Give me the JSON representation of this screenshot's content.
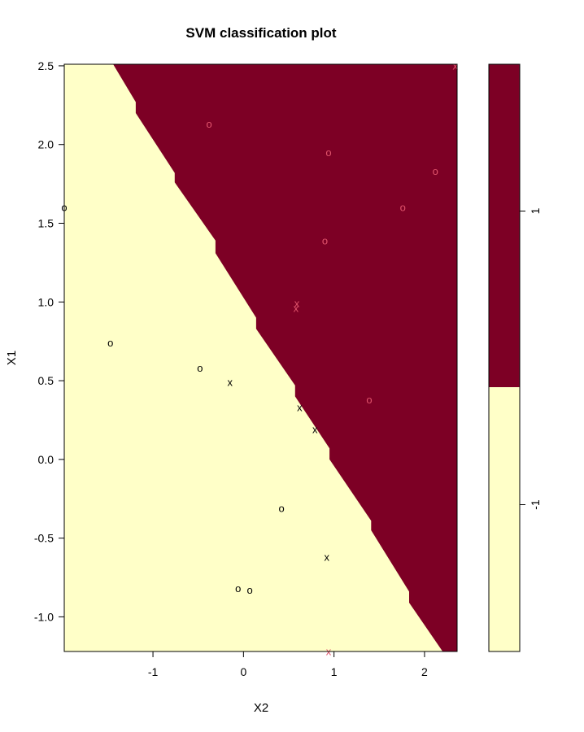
{
  "chart_data": {
    "type": "scatter",
    "title": "SVM classification plot",
    "xlabel": "X2",
    "ylabel": "X1",
    "xlim": [
      -1.98,
      2.36
    ],
    "ylim": [
      -1.22,
      2.51
    ],
    "xticks": [
      -1,
      0,
      1,
      2
    ],
    "xtick_labels": [
      "-1",
      "0",
      "1",
      "2"
    ],
    "yticks": [
      -1.0,
      -0.5,
      0.0,
      0.5,
      1.0,
      1.5,
      2.0,
      2.5
    ],
    "ytick_labels": [
      "-1.0",
      "-0.5",
      "0.0",
      "0.5",
      "1.0",
      "1.5",
      "2.0",
      "2.5"
    ],
    "grid": false,
    "colors": {
      "region_neg1": "#FFFFC8",
      "region_pos1": "#7D0025",
      "class_neg1_points": "#000000",
      "class_pos1_points": "#DF536B"
    },
    "decision_regions": {
      "class_pos1_region": "upper-right, above the stair-step boundary",
      "class_neg1_region": "lower-left, below the stair-step boundary",
      "boundary": [
        {
          "x": -1.44,
          "y": 2.51
        },
        {
          "x": -1.19,
          "y": 2.27
        },
        {
          "x": -1.19,
          "y": 2.2
        },
        {
          "x": -0.76,
          "y": 1.82
        },
        {
          "x": -0.76,
          "y": 1.76
        },
        {
          "x": -0.31,
          "y": 1.39
        },
        {
          "x": -0.31,
          "y": 1.31
        },
        {
          "x": 0.14,
          "y": 0.9
        },
        {
          "x": 0.14,
          "y": 0.83
        },
        {
          "x": 0.57,
          "y": 0.47
        },
        {
          "x": 0.57,
          "y": 0.4
        },
        {
          "x": 0.95,
          "y": 0.07
        },
        {
          "x": 0.95,
          "y": 0.0
        },
        {
          "x": 1.41,
          "y": -0.39
        },
        {
          "x": 1.41,
          "y": -0.45
        },
        {
          "x": 1.83,
          "y": -0.84
        },
        {
          "x": 1.83,
          "y": -0.91
        },
        {
          "x": 2.2,
          "y": -1.22
        }
      ]
    },
    "series": [
      {
        "name": "-1",
        "color": "#000000",
        "points": [
          {
            "x": -1.98,
            "y": 1.6,
            "marker": "o"
          },
          {
            "x": -1.47,
            "y": 0.74,
            "marker": "o"
          },
          {
            "x": -0.48,
            "y": 0.58,
            "marker": "o"
          },
          {
            "x": -0.15,
            "y": 0.49,
            "marker": "x"
          },
          {
            "x": 0.62,
            "y": 0.33,
            "marker": "x"
          },
          {
            "x": 0.79,
            "y": 0.19,
            "marker": "x"
          },
          {
            "x": 0.42,
            "y": -0.31,
            "marker": "o"
          },
          {
            "x": 0.92,
            "y": -0.62,
            "marker": "x"
          },
          {
            "x": -0.06,
            "y": -0.82,
            "marker": "o"
          },
          {
            "x": 0.07,
            "y": -0.83,
            "marker": "o"
          }
        ]
      },
      {
        "name": "1",
        "color": "#DF536B",
        "points": [
          {
            "x": -0.38,
            "y": 2.13,
            "marker": "o"
          },
          {
            "x": 0.94,
            "y": 1.95,
            "marker": "o"
          },
          {
            "x": 2.12,
            "y": 1.83,
            "marker": "o"
          },
          {
            "x": 1.76,
            "y": 1.6,
            "marker": "o"
          },
          {
            "x": 0.9,
            "y": 1.39,
            "marker": "o"
          },
          {
            "x": 0.59,
            "y": 0.99,
            "marker": "x"
          },
          {
            "x": 0.58,
            "y": 0.96,
            "marker": "x"
          },
          {
            "x": 1.39,
            "y": 0.38,
            "marker": "o"
          },
          {
            "x": 2.34,
            "y": 2.5,
            "marker": "x"
          },
          {
            "x": 0.94,
            "y": -1.22,
            "marker": "x"
          }
        ]
      }
    ],
    "legend": {
      "placement": "right",
      "type": "color-key",
      "entries": [
        {
          "label": "1",
          "color": "#7D0025",
          "range": [
            0,
            1
          ]
        },
        {
          "label": "-1",
          "color": "#FFFFC8",
          "range": [
            -1,
            0
          ]
        }
      ]
    }
  }
}
